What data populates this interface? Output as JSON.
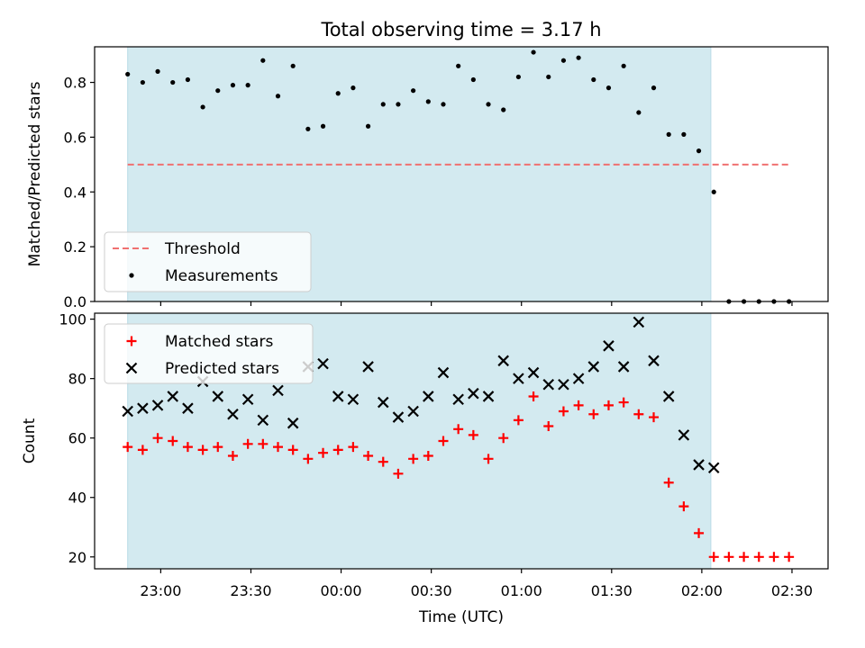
{
  "chart_data": [
    {
      "type": "scatter",
      "title": "Total observing time = 3.17 h",
      "xlabel": "",
      "ylabel": "Matched/Predicted stars",
      "ylim": [
        0,
        0.93
      ],
      "yticks": [
        "0.0",
        "0.2",
        "0.4",
        "0.6",
        "0.8"
      ],
      "ytick_values": [
        0,
        0.2,
        0.4,
        0.6,
        0.8
      ],
      "x_unit": "minutes after 22:00 UTC",
      "xlim": [
        38,
        282
      ],
      "shaded_region": {
        "start": 49,
        "end": 243,
        "color": "#d3eaf0"
      },
      "threshold": {
        "name": "Threshold",
        "value": 0.5,
        "start": 49,
        "end": 269,
        "color": "#f07070"
      },
      "series": [
        {
          "name": "Measurements",
          "color": "#000000",
          "marker": "dot",
          "points": [
            [
              49,
              0.83
            ],
            [
              54,
              0.8
            ],
            [
              59,
              0.84
            ],
            [
              64,
              0.8
            ],
            [
              69,
              0.81
            ],
            [
              74,
              0.71
            ],
            [
              79,
              0.77
            ],
            [
              84,
              0.79
            ],
            [
              89,
              0.79
            ],
            [
              94,
              0.88
            ],
            [
              99,
              0.75
            ],
            [
              104,
              0.86
            ],
            [
              109,
              0.63
            ],
            [
              114,
              0.64
            ],
            [
              119,
              0.76
            ],
            [
              124,
              0.78
            ],
            [
              129,
              0.64
            ],
            [
              134,
              0.72
            ],
            [
              139,
              0.72
            ],
            [
              144,
              0.77
            ],
            [
              149,
              0.73
            ],
            [
              154,
              0.72
            ],
            [
              159,
              0.86
            ],
            [
              164,
              0.81
            ],
            [
              169,
              0.72
            ],
            [
              174,
              0.7
            ],
            [
              179,
              0.82
            ],
            [
              184,
              0.91
            ],
            [
              189,
              0.82
            ],
            [
              194,
              0.88
            ],
            [
              199,
              0.89
            ],
            [
              204,
              0.81
            ],
            [
              209,
              0.78
            ],
            [
              214,
              0.86
            ],
            [
              219,
              0.69
            ],
            [
              224,
              0.78
            ],
            [
              229,
              0.61
            ],
            [
              234,
              0.61
            ],
            [
              239,
              0.55
            ],
            [
              244,
              0.4
            ],
            [
              249,
              0.0
            ],
            [
              254,
              0.0
            ],
            [
              259,
              0.0
            ],
            [
              264,
              0.0
            ],
            [
              269,
              0.0
            ]
          ]
        }
      ],
      "legend_position": "lower-left"
    },
    {
      "type": "scatter",
      "title": "",
      "xlabel": "Time (UTC)",
      "ylabel": "Count",
      "ylim": [
        16,
        102
      ],
      "yticks": [
        "20",
        "40",
        "60",
        "80",
        "100"
      ],
      "ytick_values": [
        20,
        40,
        60,
        80,
        100
      ],
      "x_unit": "minutes after 22:00 UTC",
      "xlim": [
        38,
        282
      ],
      "xticks": [
        "23:00",
        "23:30",
        "00:00",
        "00:30",
        "01:00",
        "01:30",
        "02:00",
        "02:30"
      ],
      "xtick_values": [
        60,
        90,
        120,
        150,
        180,
        210,
        240,
        270
      ],
      "shaded_region": {
        "start": 49,
        "end": 243,
        "color": "#d3eaf0"
      },
      "series": [
        {
          "name": "Matched stars",
          "color": "#ff0000",
          "marker": "plus",
          "points": [
            [
              49,
              57
            ],
            [
              54,
              56
            ],
            [
              59,
              60
            ],
            [
              64,
              59
            ],
            [
              69,
              57
            ],
            [
              74,
              56
            ],
            [
              79,
              57
            ],
            [
              84,
              54
            ],
            [
              89,
              58
            ],
            [
              94,
              58
            ],
            [
              99,
              57
            ],
            [
              104,
              56
            ],
            [
              109,
              53
            ],
            [
              114,
              55
            ],
            [
              119,
              56
            ],
            [
              124,
              57
            ],
            [
              129,
              54
            ],
            [
              134,
              52
            ],
            [
              139,
              48
            ],
            [
              144,
              53
            ],
            [
              149,
              54
            ],
            [
              154,
              59
            ],
            [
              159,
              63
            ],
            [
              164,
              61
            ],
            [
              169,
              53
            ],
            [
              174,
              60
            ],
            [
              179,
              66
            ],
            [
              184,
              74
            ],
            [
              189,
              64
            ],
            [
              194,
              69
            ],
            [
              199,
              71
            ],
            [
              204,
              68
            ],
            [
              209,
              71
            ],
            [
              214,
              72
            ],
            [
              219,
              68
            ],
            [
              224,
              67
            ],
            [
              229,
              45
            ],
            [
              234,
              37
            ],
            [
              239,
              28
            ],
            [
              244,
              20
            ],
            [
              249,
              20
            ],
            [
              254,
              20
            ],
            [
              259,
              20
            ],
            [
              264,
              20
            ],
            [
              269,
              20
            ]
          ]
        },
        {
          "name": "Predicted stars",
          "color": "#000000",
          "marker": "x",
          "points": [
            [
              49,
              69
            ],
            [
              54,
              70
            ],
            [
              59,
              71
            ],
            [
              64,
              74
            ],
            [
              69,
              70
            ],
            [
              74,
              79
            ],
            [
              79,
              74
            ],
            [
              84,
              68
            ],
            [
              89,
              73
            ],
            [
              94,
              66
            ],
            [
              99,
              76
            ],
            [
              104,
              65
            ],
            [
              109,
              84
            ],
            [
              114,
              85
            ],
            [
              119,
              74
            ],
            [
              124,
              73
            ],
            [
              129,
              84
            ],
            [
              134,
              72
            ],
            [
              139,
              67
            ],
            [
              144,
              69
            ],
            [
              149,
              74
            ],
            [
              154,
              82
            ],
            [
              159,
              73
            ],
            [
              164,
              75
            ],
            [
              169,
              74
            ],
            [
              174,
              86
            ],
            [
              179,
              80
            ],
            [
              184,
              82
            ],
            [
              189,
              78
            ],
            [
              194,
              78
            ],
            [
              199,
              80
            ],
            [
              204,
              84
            ],
            [
              209,
              91
            ],
            [
              214,
              84
            ],
            [
              219,
              99
            ],
            [
              224,
              86
            ],
            [
              229,
              74
            ],
            [
              234,
              61
            ],
            [
              239,
              51
            ],
            [
              244,
              50
            ]
          ]
        }
      ],
      "legend_position": "upper-left"
    }
  ]
}
